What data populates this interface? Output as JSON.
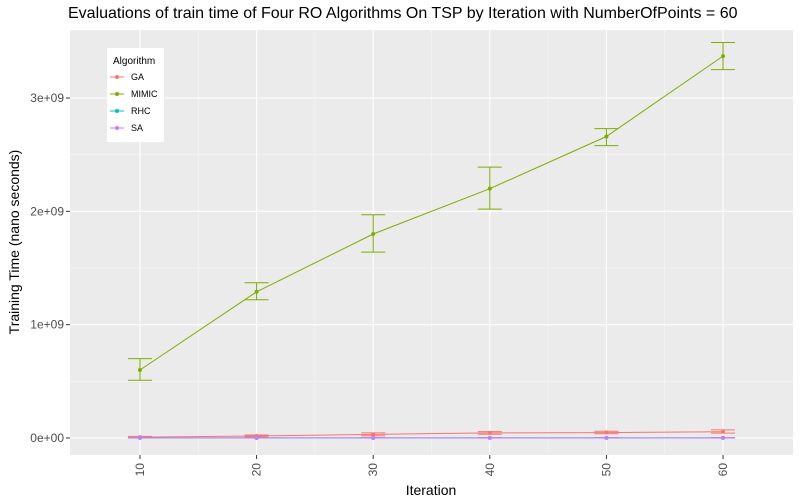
{
  "chart_data": {
    "type": "line",
    "title": "Evaluations of train time of Four RO Algorithms On TSP by Iteration with NumberOfPoints = 60",
    "xlabel": "Iteration",
    "ylabel": "Training Time (nano seconds)",
    "x": [
      10,
      20,
      30,
      40,
      50,
      60
    ],
    "x_ticks": [
      10,
      20,
      30,
      40,
      50,
      60
    ],
    "x_tick_labels": [
      "10",
      "20",
      "30",
      "40",
      "50",
      "60"
    ],
    "xlim": [
      4,
      66
    ],
    "ylim": [
      -150000000,
      3600000000
    ],
    "y_ticks": [
      0,
      1000000000,
      2000000000,
      3000000000
    ],
    "y_tick_labels": [
      "0e+00",
      "1e+09",
      "2e+09",
      "3e+09"
    ],
    "grid": true,
    "legend": {
      "title": "Algorithm",
      "position": "top-left"
    },
    "series": [
      {
        "name": "GA",
        "color": "#F8766D",
        "values": [
          8000000,
          18000000,
          32000000,
          45000000,
          48000000,
          55000000
        ],
        "err_low": [
          4000000,
          10000000,
          20000000,
          33000000,
          38000000,
          43000000
        ],
        "err_high": [
          14000000,
          27000000,
          45000000,
          56000000,
          60000000,
          72000000
        ]
      },
      {
        "name": "MIMIC",
        "color": "#7CAE00",
        "values": [
          600000000,
          1290000000,
          1800000000,
          2200000000,
          2660000000,
          3370000000
        ],
        "err_low": [
          510000000,
          1220000000,
          1640000000,
          2020000000,
          2580000000,
          3250000000
        ],
        "err_high": [
          700000000,
          1370000000,
          1970000000,
          2390000000,
          2730000000,
          3490000000
        ]
      },
      {
        "name": "RHC",
        "color": "#00BFC4",
        "values": [
          1000000,
          1000000,
          1000000,
          1000000,
          1000000,
          1000000
        ],
        "err_low": [
          0,
          0,
          0,
          0,
          0,
          0
        ],
        "err_high": [
          2000000,
          2000000,
          2000000,
          2000000,
          2000000,
          2000000
        ]
      },
      {
        "name": "SA",
        "color": "#C77CFF",
        "values": [
          1000000,
          1000000,
          1000000,
          1000000,
          1000000,
          1000000
        ],
        "err_low": [
          0,
          0,
          0,
          0,
          0,
          0
        ],
        "err_high": [
          2000000,
          2000000,
          2000000,
          2000000,
          2000000,
          2000000
        ]
      }
    ]
  }
}
